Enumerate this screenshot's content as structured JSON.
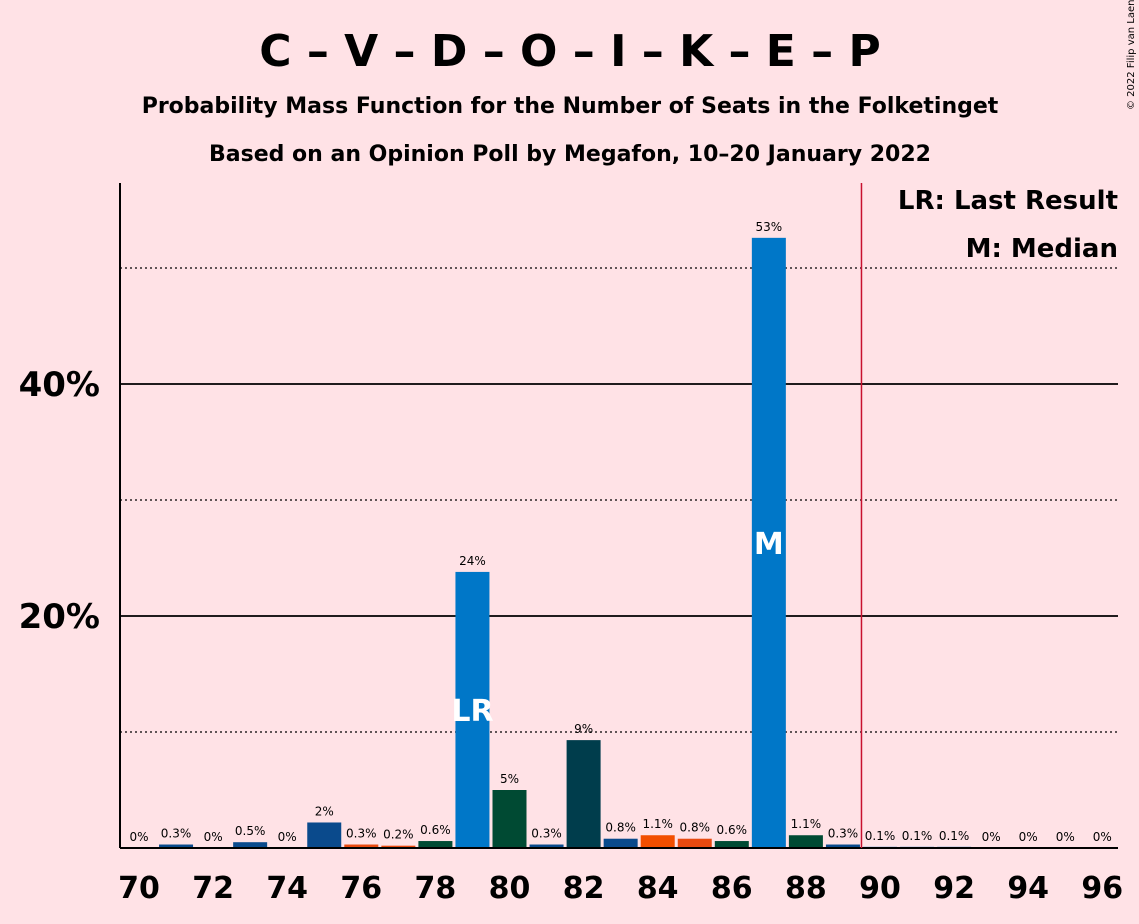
{
  "chart_data": {
    "type": "bar",
    "title": "C – V – D – O – I – K – E – P",
    "subtitle1": "Probability Mass Function for the Number of Seats in the Folketinget",
    "subtitle2": "Based on an Opinion Poll by Megafon, 10–20 January 2022",
    "copyright": "© 2022 Filip van Laenen",
    "x": [
      70,
      71,
      72,
      73,
      74,
      75,
      76,
      77,
      78,
      79,
      80,
      81,
      82,
      83,
      84,
      85,
      86,
      87,
      88,
      89,
      90,
      91,
      92,
      93,
      94,
      95,
      96
    ],
    "values": [
      0,
      0.3,
      0,
      0.5,
      0,
      2.2,
      0.3,
      0.2,
      0.6,
      23.8,
      5,
      0.3,
      9.3,
      0.8,
      1.1,
      0.8,
      0.6,
      52.6,
      1.1,
      0.3,
      0.1,
      0.1,
      0.1,
      0,
      0,
      0,
      0
    ],
    "labels": [
      "0%",
      "0.3%",
      "0%",
      "0.5%",
      "0%",
      "2%",
      "0.3%",
      "0.2%",
      "0.6%",
      "24%",
      "5%",
      "0.3%",
      "9%",
      "0.8%",
      "1.1%",
      "0.8%",
      "0.6%",
      "53%",
      "1.1%",
      "0.3%",
      "0.1%",
      "0.1%",
      "0.1%",
      "0%",
      "0%",
      "0%",
      "0%"
    ],
    "colors": [
      "#0077C8",
      "#0A4A8C",
      "#0077C8",
      "#0A4A8C",
      "#0077C8",
      "#0A4A8C",
      "#E84A10",
      "#E84A10",
      "#004A33",
      "#0077C8",
      "#004A33",
      "#0A4A8C",
      "#003D4C",
      "#0A4A8C",
      "#F24F00",
      "#E84A10",
      "#004A33",
      "#0077C8",
      "#004A33",
      "#0A4A8C",
      "#0077C8",
      "#0077C8",
      "#0077C8",
      "#0077C8",
      "#0077C8",
      "#0077C8",
      "#0077C8"
    ],
    "x_tick_labels": [
      "70",
      "72",
      "74",
      "76",
      "78",
      "80",
      "82",
      "84",
      "86",
      "88",
      "90",
      "92",
      "94",
      "96"
    ],
    "y_tick_labels": [
      {
        "value": 20,
        "label": "20%"
      },
      {
        "value": 40,
        "label": "40%"
      }
    ],
    "ylim": [
      0,
      57.5
    ],
    "gridlines_solid": [
      20,
      40
    ],
    "gridlines_dotted": [
      10,
      30,
      50
    ],
    "last_result_seat": 79,
    "last_result_marker": "LR",
    "median_seat": 87,
    "median_marker": "M",
    "majority_line_x": 89.5,
    "majority_line_color": "#C8102E",
    "legend": [
      "LR: Last Result",
      "M: Median"
    ],
    "legend_position": "top-right"
  }
}
